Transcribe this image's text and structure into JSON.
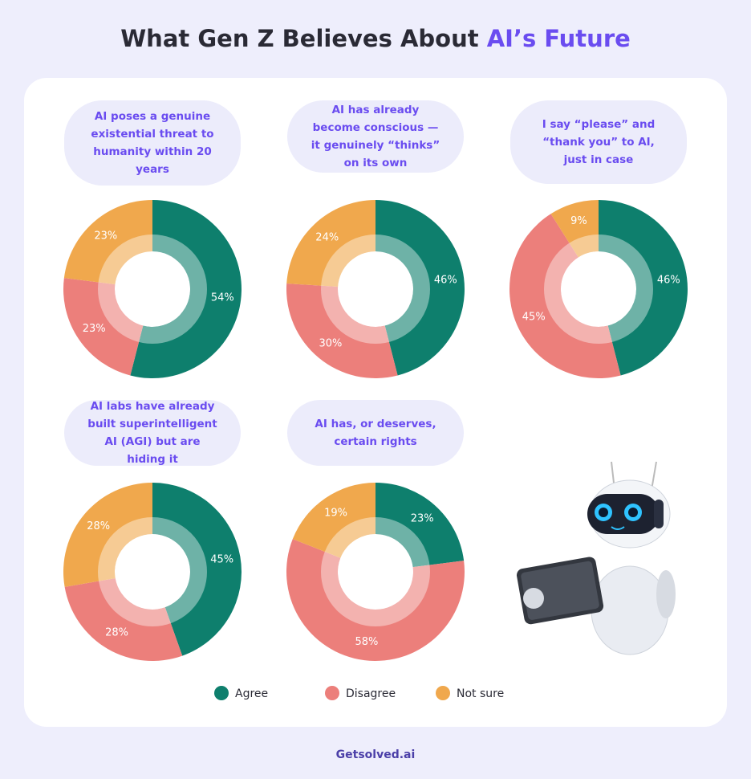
{
  "title": {
    "main": "What Gen Z Believes About",
    "highlight": "AI’s Future"
  },
  "footer": "Getsolved.ai",
  "chart_data": [
    {
      "type": "pie",
      "title": "AI poses a genuine existential threat to humanity within 20 years",
      "categories": [
        "Agree",
        "Disagree",
        "Not sure"
      ],
      "colors": [
        "#0e7f6d",
        "#ec7f7b",
        "#f0a84d"
      ],
      "values": [
        54,
        23,
        23
      ],
      "value_labels": [
        "54%",
        "23%",
        "23%"
      ]
    },
    {
      "type": "pie",
      "title": "AI has already become conscious — it genuinely “thinks” on its own",
      "categories": [
        "Agree",
        "Disagree",
        "Not sure"
      ],
      "colors": [
        "#0e7f6d",
        "#ec7f7b",
        "#f0a84d"
      ],
      "values": [
        46,
        30,
        24
      ],
      "value_labels": [
        "46%",
        "30%",
        "24%"
      ]
    },
    {
      "type": "pie",
      "title": "I say “please” and “thank you” to AI, just in case",
      "categories": [
        "Agree",
        "Disagree",
        "Not sure"
      ],
      "colors": [
        "#0e7f6d",
        "#ec7f7b",
        "#f0a84d"
      ],
      "values": [
        46,
        45,
        9
      ],
      "value_labels": [
        "46%",
        "45%",
        "9%"
      ]
    },
    {
      "type": "pie",
      "title": "AI labs have already built superintelligent AI (AGI) but are hiding it",
      "categories": [
        "Agree",
        "Disagree",
        "Not sure"
      ],
      "colors": [
        "#0e7f6d",
        "#ec7f7b",
        "#f0a84d"
      ],
      "values": [
        45,
        28,
        28
      ],
      "value_labels": [
        "45%",
        "28%",
        "28%"
      ]
    },
    {
      "type": "pie",
      "title": "AI has, or deserves, certain rights",
      "categories": [
        "Agree",
        "Disagree",
        "Not sure"
      ],
      "colors": [
        "#0e7f6d",
        "#ec7f7b",
        "#f0a84d"
      ],
      "values": [
        23,
        58,
        19
      ],
      "value_labels": [
        "23%",
        "58%",
        "19%"
      ]
    }
  ]
}
